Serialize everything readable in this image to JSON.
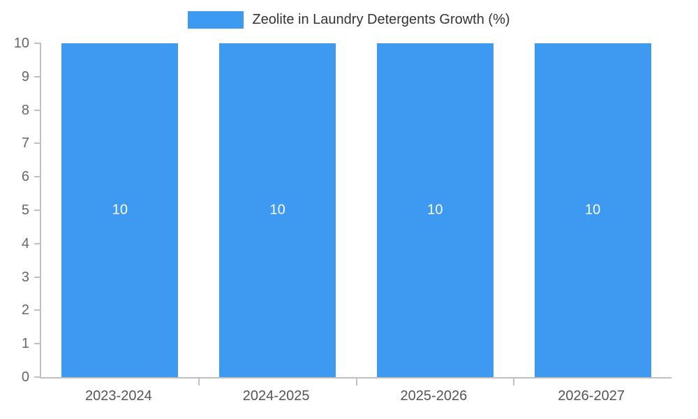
{
  "legend": {
    "label": "Zeolite in Laundry Detergents Growth (%)",
    "swatch_color": "#3D9AF0",
    "position": "top-center"
  },
  "chart_data": {
    "type": "bar",
    "title": "Zeolite in Laundry Detergents Growth (%)",
    "categories": [
      "2023-2024",
      "2024-2025",
      "2025-2026",
      "2026-2027"
    ],
    "values": [
      10,
      10,
      10,
      10
    ],
    "xlabel": "",
    "ylabel": "",
    "ylim": [
      0,
      10
    ],
    "ytick_step": 1,
    "yticks": [
      0,
      1,
      2,
      3,
      4,
      5,
      6,
      7,
      8,
      9,
      10
    ],
    "grid": false,
    "bar_color": "#3D9AF0",
    "value_label_color": "#ffffff",
    "axis_line_color": "#c0c0c0",
    "axis_text_color": "#666666"
  }
}
